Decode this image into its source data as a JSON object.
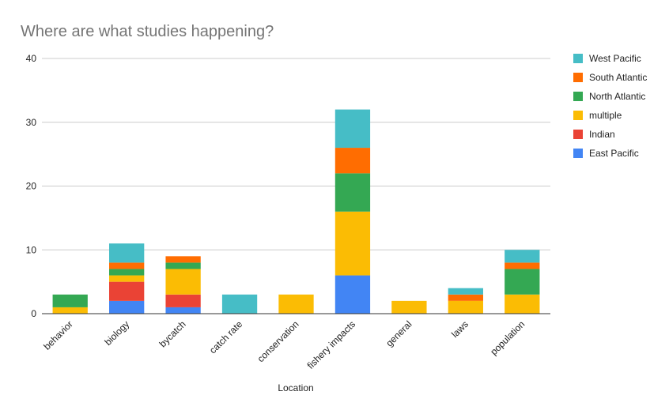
{
  "chart_data": {
    "type": "bar",
    "stacked": true,
    "title": "Where are what studies happening?",
    "xlabel": "Location",
    "ylabel": "",
    "ylim": [
      0,
      40
    ],
    "yticks": [
      0,
      10,
      20,
      30,
      40
    ],
    "grid": true,
    "legend_position": "right",
    "categories": [
      "behavior",
      "biology",
      "bycatch",
      "catch rate",
      "conservation",
      "fishery impacts",
      "general",
      "laws",
      "population"
    ],
    "series": [
      {
        "name": "East Pacific",
        "color": "#4285f4",
        "values": [
          0,
          2,
          1,
          0,
          0,
          6,
          0,
          0,
          0
        ]
      },
      {
        "name": "Indian",
        "color": "#ea4335",
        "values": [
          0,
          3,
          2,
          0,
          0,
          0,
          0,
          0,
          0
        ]
      },
      {
        "name": "multiple",
        "color": "#fbbc04",
        "values": [
          1,
          1,
          4,
          0,
          3,
          10,
          2,
          2,
          3
        ]
      },
      {
        "name": "North Atlantic",
        "color": "#34a853",
        "values": [
          2,
          1,
          1,
          0,
          0,
          6,
          0,
          0,
          4
        ]
      },
      {
        "name": "South Atlantic",
        "color": "#ff6d01",
        "values": [
          0,
          1,
          1,
          0,
          0,
          4,
          0,
          1,
          1
        ]
      },
      {
        "name": "West Pacific",
        "color": "#46bdc6",
        "values": [
          0,
          3,
          0,
          3,
          0,
          6,
          0,
          1,
          2
        ]
      }
    ],
    "legend_order": [
      "West Pacific",
      "South Atlantic",
      "North Atlantic",
      "multiple",
      "Indian",
      "East Pacific"
    ]
  }
}
